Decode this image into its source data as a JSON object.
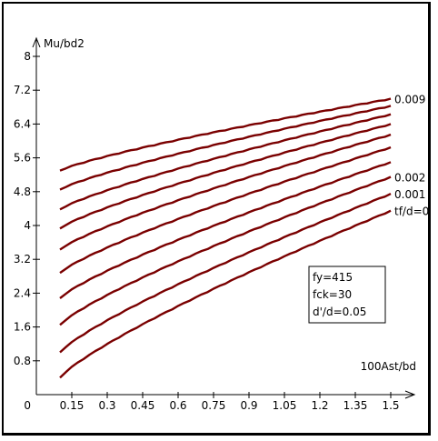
{
  "chart_data": {
    "type": "line",
    "title": "",
    "xlabel": "100Ast/bd",
    "ylabel": "Mu/bd2",
    "x_ticks": [
      "0",
      "0.15",
      "0.3",
      "0.45",
      "0.6",
      "0.75",
      "0.9",
      "1.05",
      "1.2",
      "1.35",
      "1.5"
    ],
    "y_ticks": [
      "0.8",
      "1.6",
      "2.4",
      "3.2",
      "4",
      "4.8",
      "5.6",
      "6.4",
      "7.2",
      "8"
    ],
    "xlim": [
      0,
      1.5
    ],
    "ylim": [
      0,
      8.2
    ],
    "line_color": "#7a0000",
    "x": [
      0.1,
      1.5
    ],
    "series": [
      {
        "name": "tf/d=0",
        "values": [
          0.4,
          4.35
        ]
      },
      {
        "name": "0.001",
        "values": [
          1.0,
          4.75
        ]
      },
      {
        "name": "0.002",
        "values": [
          1.65,
          5.15
        ]
      },
      {
        "name": "",
        "values": [
          2.28,
          5.5
        ]
      },
      {
        "name": "",
        "values": [
          2.88,
          5.85
        ]
      },
      {
        "name": "",
        "values": [
          3.43,
          6.15
        ]
      },
      {
        "name": "",
        "values": [
          3.93,
          6.4
        ]
      },
      {
        "name": "",
        "values": [
          4.38,
          6.63
        ]
      },
      {
        "name": "",
        "values": [
          4.85,
          6.83
        ]
      },
      {
        "name": "0.009",
        "values": [
          5.3,
          7.0
        ]
      }
    ],
    "legend": "curve labels at right end",
    "annotation": [
      "fy=415",
      "fck=30",
      "d'/d=0.05"
    ]
  }
}
